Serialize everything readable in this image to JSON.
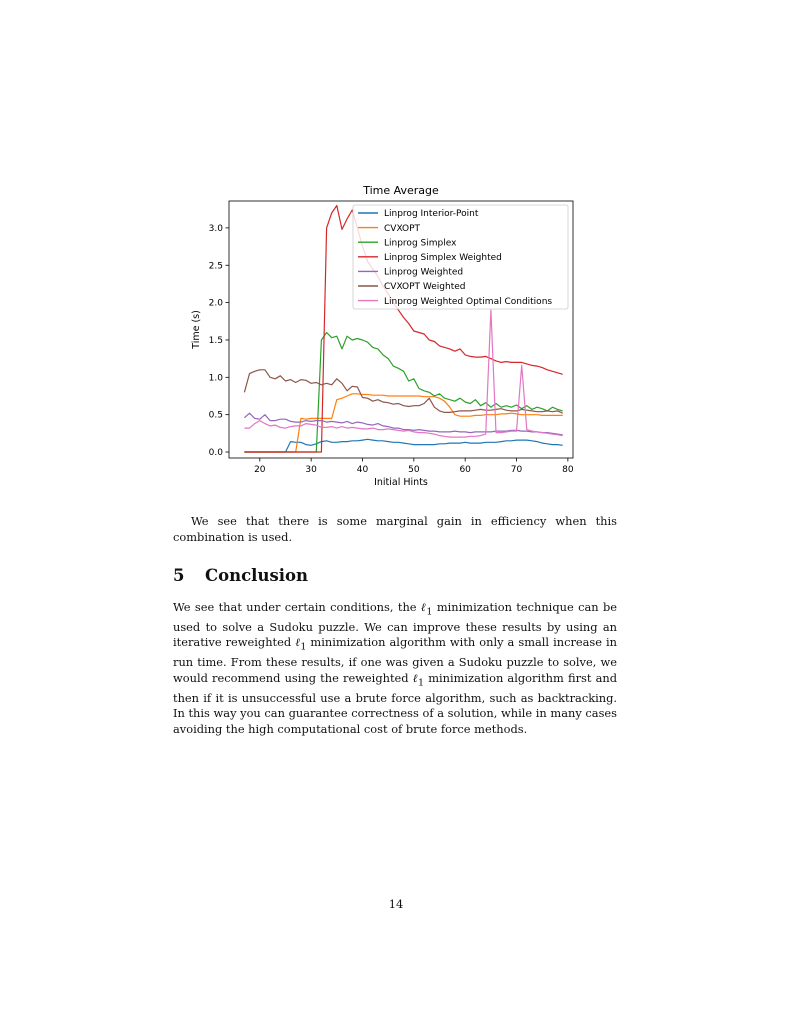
{
  "chart_data": {
    "type": "line",
    "title": "Time Average",
    "xlabel": "Initial Hints",
    "ylabel": "Time (s)",
    "xlim": [
      14,
      81
    ],
    "ylim": [
      -0.08,
      3.36
    ],
    "xticks": [
      20,
      30,
      40,
      50,
      60,
      70,
      80
    ],
    "yticks": [
      0.0,
      0.5,
      1.0,
      1.5,
      2.0,
      2.5,
      3.0
    ],
    "xtick_labels": [
      "20",
      "30",
      "40",
      "50",
      "60",
      "70",
      "80"
    ],
    "ytick_labels": [
      "0.0",
      "0.5",
      "1.0",
      "1.5",
      "2.0",
      "2.5",
      "3.0"
    ],
    "grid": false,
    "legend_position": "top-right",
    "x": [
      17,
      18,
      19,
      20,
      21,
      22,
      23,
      24,
      25,
      26,
      27,
      28,
      29,
      30,
      31,
      32,
      33,
      34,
      35,
      36,
      37,
      38,
      39,
      40,
      41,
      42,
      43,
      44,
      45,
      46,
      47,
      48,
      49,
      50,
      51,
      52,
      53,
      54,
      55,
      56,
      57,
      58,
      59,
      60,
      61,
      62,
      63,
      64,
      65,
      66,
      67,
      68,
      69,
      70,
      71,
      72,
      73,
      74,
      75,
      76,
      77,
      78,
      79
    ],
    "series": [
      {
        "name": "Linprog Interior-Point",
        "color": "#1f77b4",
        "values": [
          0,
          0,
          0,
          0,
          0,
          0,
          0,
          0,
          0,
          0.14,
          0.13,
          0.13,
          0.1,
          0.09,
          0.11,
          0.14,
          0.15,
          0.13,
          0.13,
          0.14,
          0.14,
          0.15,
          0.15,
          0.16,
          0.17,
          0.16,
          0.15,
          0.15,
          0.14,
          0.13,
          0.13,
          0.12,
          0.11,
          0.1,
          0.1,
          0.1,
          0.1,
          0.1,
          0.11,
          0.11,
          0.12,
          0.12,
          0.12,
          0.13,
          0.12,
          0.12,
          0.12,
          0.13,
          0.13,
          0.13,
          0.14,
          0.15,
          0.15,
          0.16,
          0.16,
          0.16,
          0.15,
          0.14,
          0.12,
          0.11,
          0.1,
          0.1,
          0.09
        ]
      },
      {
        "name": "CVXOPT",
        "color": "#ff7f0e",
        "values": [
          0,
          0,
          0,
          0,
          0,
          0,
          0,
          0,
          0,
          0,
          0,
          0.45,
          0.44,
          0.45,
          0.45,
          0.45,
          0.45,
          0.45,
          0.7,
          0.72,
          0.75,
          0.78,
          0.78,
          0.77,
          0.77,
          0.76,
          0.76,
          0.76,
          0.75,
          0.75,
          0.75,
          0.75,
          0.75,
          0.75,
          0.75,
          0.74,
          0.74,
          0.74,
          0.72,
          0.68,
          0.6,
          0.5,
          0.48,
          0.48,
          0.48,
          0.49,
          0.49,
          0.5,
          0.5,
          0.5,
          0.51,
          0.51,
          0.52,
          0.51,
          0.5,
          0.5,
          0.5,
          0.5,
          0.49,
          0.49,
          0.49,
          0.49,
          0.49
        ]
      },
      {
        "name": "Linprog Simplex",
        "color": "#2ca02c",
        "values": [
          0,
          0,
          0,
          0,
          0,
          0,
          0,
          0,
          0,
          0,
          0,
          0,
          0,
          0,
          0,
          1.5,
          1.6,
          1.53,
          1.55,
          1.38,
          1.55,
          1.5,
          1.52,
          1.5,
          1.47,
          1.4,
          1.38,
          1.3,
          1.25,
          1.15,
          1.12,
          1.08,
          0.95,
          0.98,
          0.85,
          0.82,
          0.8,
          0.75,
          0.78,
          0.72,
          0.7,
          0.68,
          0.72,
          0.67,
          0.65,
          0.7,
          0.62,
          0.66,
          0.6,
          0.65,
          0.6,
          0.62,
          0.6,
          0.63,
          0.58,
          0.62,
          0.57,
          0.6,
          0.58,
          0.55,
          0.6,
          0.57,
          0.55
        ]
      },
      {
        "name": "Linprog Simplex Weighted",
        "color": "#d62728",
        "values": [
          0,
          0,
          0,
          0,
          0,
          0,
          0,
          0,
          0,
          0,
          0,
          0,
          0,
          0,
          0,
          0,
          3.0,
          3.2,
          3.3,
          2.98,
          3.12,
          3.24,
          3.0,
          2.75,
          2.55,
          2.45,
          2.35,
          2.22,
          2.12,
          2.0,
          1.9,
          1.8,
          1.72,
          1.62,
          1.6,
          1.58,
          1.5,
          1.48,
          1.42,
          1.4,
          1.38,
          1.35,
          1.38,
          1.3,
          1.28,
          1.27,
          1.27,
          1.28,
          1.25,
          1.22,
          1.2,
          1.21,
          1.2,
          1.2,
          1.2,
          1.18,
          1.16,
          1.15,
          1.13,
          1.1,
          1.08,
          1.06,
          1.04
        ]
      },
      {
        "name": "Linprog Weighted",
        "color": "#9467bd",
        "values": [
          0.46,
          0.52,
          0.45,
          0.44,
          0.5,
          0.42,
          0.42,
          0.44,
          0.44,
          0.41,
          0.4,
          0.4,
          0.42,
          0.41,
          0.42,
          0.42,
          0.4,
          0.41,
          0.4,
          0.39,
          0.41,
          0.38,
          0.4,
          0.39,
          0.37,
          0.36,
          0.38,
          0.35,
          0.34,
          0.32,
          0.32,
          0.3,
          0.3,
          0.29,
          0.3,
          0.29,
          0.28,
          0.28,
          0.27,
          0.27,
          0.27,
          0.28,
          0.27,
          0.27,
          0.26,
          0.27,
          0.27,
          0.27,
          0.27,
          0.28,
          0.28,
          0.28,
          0.29,
          0.29,
          0.28,
          0.28,
          0.27,
          0.27,
          0.26,
          0.26,
          0.25,
          0.24,
          0.23
        ]
      },
      {
        "name": "CVXOPT Weighted",
        "color": "#8c564b",
        "values": [
          0.8,
          1.05,
          1.08,
          1.1,
          1.1,
          1.0,
          0.98,
          1.02,
          0.95,
          0.97,
          0.93,
          0.97,
          0.96,
          0.92,
          0.93,
          0.9,
          0.92,
          0.9,
          0.98,
          0.92,
          0.82,
          0.88,
          0.87,
          0.73,
          0.72,
          0.68,
          0.7,
          0.67,
          0.66,
          0.64,
          0.65,
          0.62,
          0.61,
          0.62,
          0.62,
          0.65,
          0.72,
          0.6,
          0.55,
          0.53,
          0.53,
          0.54,
          0.55,
          0.55,
          0.55,
          0.56,
          0.57,
          0.56,
          0.56,
          0.57,
          0.58,
          0.56,
          0.55,
          0.55,
          0.57,
          0.56,
          0.55,
          0.54,
          0.54,
          0.55,
          0.54,
          0.55,
          0.52
        ]
      },
      {
        "name": "Linprog Weighted Optimal Conditions",
        "color": "#e377c2",
        "values": [
          0.32,
          0.32,
          0.38,
          0.42,
          0.38,
          0.35,
          0.36,
          0.33,
          0.32,
          0.34,
          0.35,
          0.35,
          0.38,
          0.37,
          0.36,
          0.33,
          0.33,
          0.34,
          0.32,
          0.34,
          0.32,
          0.33,
          0.32,
          0.31,
          0.31,
          0.32,
          0.3,
          0.3,
          0.31,
          0.3,
          0.29,
          0.28,
          0.29,
          0.27,
          0.26,
          0.26,
          0.25,
          0.24,
          0.22,
          0.21,
          0.2,
          0.2,
          0.2,
          0.2,
          0.21,
          0.21,
          0.22,
          0.24,
          1.9,
          0.26,
          0.26,
          0.27,
          0.28,
          0.28,
          1.16,
          0.3,
          0.28,
          0.27,
          0.26,
          0.25,
          0.24,
          0.23,
          0.22
        ]
      }
    ]
  },
  "text": {
    "para1": "We see that there is some marginal gain in efficiency when this combination is used.",
    "section_number": "5",
    "section_title": "Conclusion",
    "para2_a": "We see that under certain conditions, the ",
    "para2_b": " minimization technique can be used to solve a Sudoku puzzle. We can improve these results by using an iterative reweighted ",
    "para2_c": " minimization algorithm with only a small increase in run time. From these results, if one was given a Sudoku puzzle to solve, we would recommend using the reweighted ",
    "para2_d": " minimization algorithm first and then if it is unsuccessful use a brute force algorithm, such as backtracking. In this way you can guarantee correctness of a solution, while in many cases avoiding the high computational cost of brute force methods.",
    "ell_symbol": "ℓ",
    "ell_subscript": "1",
    "page_number": "14"
  }
}
